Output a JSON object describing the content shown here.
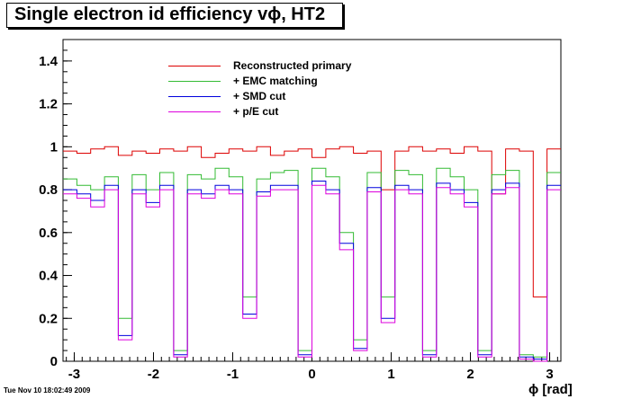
{
  "title": "Single electron id efficiency vϕ, HT2",
  "timestamp": "Tue Nov 10 18:02:49 2009",
  "chart_data": {
    "type": "line",
    "title": "Single electron id efficiency vϕ, HT2",
    "xlabel": "ϕ [rad]",
    "ylabel": "",
    "xlim": [
      -3.1416,
      3.1416
    ],
    "ylim": [
      0,
      1.5
    ],
    "x_ticks": [
      -3,
      -2,
      -1,
      0,
      1,
      2,
      3
    ],
    "y_ticks": [
      0,
      0.2,
      0.4,
      0.6,
      0.8,
      1,
      1.2,
      1.4
    ],
    "x_tick_labels": [
      "-3",
      "-2",
      "-1",
      "0",
      "1",
      "2",
      "3"
    ],
    "y_tick_labels": [
      "0",
      "0.2",
      "0.4",
      "0.6",
      "0.8",
      "1",
      "1.2",
      "1.4"
    ],
    "histogram": true,
    "bins": 36,
    "legend_placement": "top-center",
    "series": [
      {
        "name": "Reconstructed primary",
        "color": "#dd0000",
        "values": [
          0.98,
          0.97,
          0.99,
          1.0,
          0.96,
          0.98,
          0.97,
          0.99,
          0.98,
          1.0,
          0.95,
          0.97,
          0.99,
          0.98,
          1.0,
          0.96,
          0.98,
          0.99,
          0.95,
          0.99,
          1.0,
          0.97,
          0.98,
          0.8,
          0.98,
          1.0,
          0.98,
          0.99,
          0.97,
          1.0,
          0.98,
          0.78,
          0.99,
          0.98,
          0.3,
          0.99
        ]
      },
      {
        "name": "+ EMC matching",
        "color": "#33bb33",
        "values": [
          0.85,
          0.82,
          0.8,
          0.86,
          0.2,
          0.87,
          0.8,
          0.88,
          0.05,
          0.87,
          0.85,
          0.9,
          0.86,
          0.3,
          0.85,
          0.88,
          0.89,
          0.05,
          0.9,
          0.86,
          0.6,
          0.1,
          0.88,
          0.3,
          0.89,
          0.87,
          0.05,
          0.9,
          0.86,
          0.8,
          0.05,
          0.87,
          0.89,
          0.03,
          0.02,
          0.88
        ]
      },
      {
        "name": "+ SMD cut",
        "color": "#0000dd",
        "values": [
          0.8,
          0.78,
          0.75,
          0.82,
          0.12,
          0.8,
          0.74,
          0.82,
          0.03,
          0.8,
          0.78,
          0.82,
          0.8,
          0.22,
          0.79,
          0.82,
          0.82,
          0.03,
          0.84,
          0.8,
          0.55,
          0.06,
          0.81,
          0.2,
          0.82,
          0.8,
          0.03,
          0.83,
          0.8,
          0.74,
          0.03,
          0.8,
          0.83,
          0.02,
          0.01,
          0.82
        ]
      },
      {
        "name": "+ p/E cut",
        "color": "#dd00dd",
        "values": [
          0.78,
          0.76,
          0.72,
          0.8,
          0.1,
          0.78,
          0.72,
          0.8,
          0.02,
          0.78,
          0.76,
          0.8,
          0.78,
          0.2,
          0.77,
          0.8,
          0.8,
          0.02,
          0.82,
          0.78,
          0.52,
          0.05,
          0.79,
          0.18,
          0.8,
          0.78,
          0.02,
          0.81,
          0.78,
          0.72,
          0.02,
          0.78,
          0.81,
          0.01,
          0.0,
          0.8
        ]
      }
    ]
  }
}
